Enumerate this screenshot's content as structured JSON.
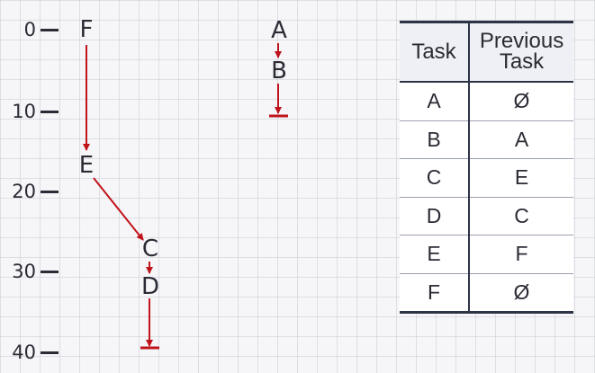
{
  "axis": {
    "ticks": [
      "0",
      "10",
      "20",
      "30",
      "40"
    ]
  },
  "nodes": [
    {
      "id": "F",
      "label": "F",
      "time": 0
    },
    {
      "id": "E",
      "label": "E",
      "time": 16.5
    },
    {
      "id": "C",
      "label": "C",
      "time": 27
    },
    {
      "id": "D",
      "label": "D",
      "time": 31.5
    },
    {
      "id": "A",
      "label": "A",
      "time": 0
    },
    {
      "id": "B",
      "label": "B",
      "time": 5
    }
  ],
  "table": {
    "headers": [
      "Task",
      "Previous Task"
    ],
    "rows": [
      [
        "A",
        "Ø"
      ],
      [
        "B",
        "A"
      ],
      [
        "C",
        "E"
      ],
      [
        "D",
        "C"
      ],
      [
        "E",
        "F"
      ],
      [
        "F",
        "Ø"
      ]
    ]
  },
  "colors": {
    "arrow": "#c0141c",
    "text": "#2b2b35",
    "table_border": "#2d3347"
  }
}
